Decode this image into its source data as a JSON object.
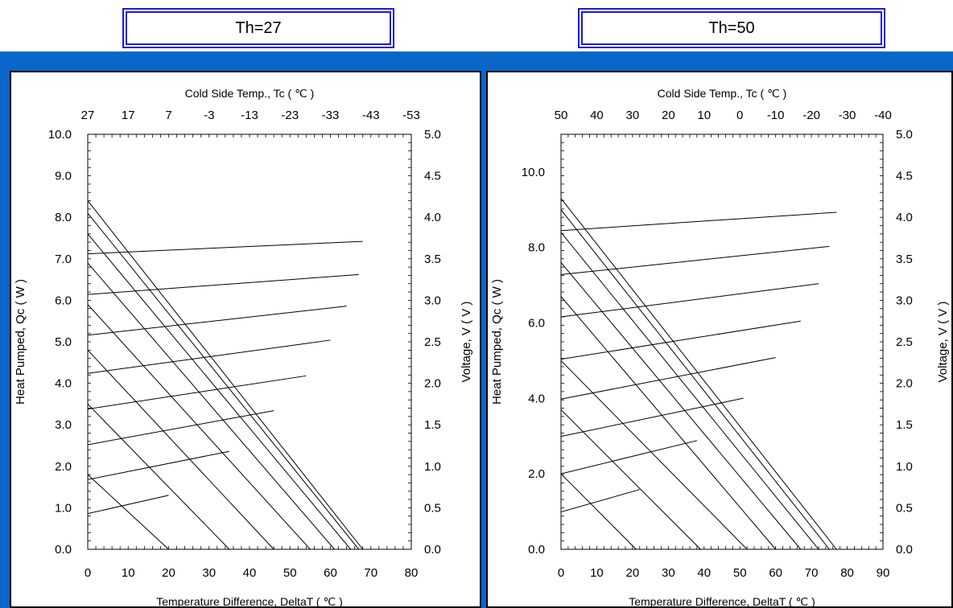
{
  "headers": {
    "left": "Th=27",
    "right": "Th=50"
  },
  "colors": {
    "banner": "#0a66c8",
    "box_border": "#1b1bd8"
  },
  "chart_data": [
    {
      "type": "line",
      "th_label": "Th=27",
      "top_axis_title": "Cold Side Temp., Tc ( ℃ )",
      "top_ticks": [
        "27",
        "17",
        "7",
        "-3",
        "-13",
        "-23",
        "-33",
        "-43",
        "-53"
      ],
      "xlabel": "Temperature Difference, DeltaT ( ℃ )",
      "ylabel": "Heat Pumped, Qc  ( W )",
      "ylabel2": "Voltage, V ( V )",
      "xlim": [
        0,
        80
      ],
      "ylim": [
        0,
        10
      ],
      "y2lim": [
        0,
        5
      ],
      "x_ticks": [
        "0",
        "10",
        "20",
        "30",
        "40",
        "50",
        "60",
        "70",
        "80"
      ],
      "y_ticks": [
        "0.0",
        "1.0",
        "2.0",
        "3.0",
        "4.0",
        "5.0",
        "6.0",
        "7.0",
        "8.0",
        "9.0",
        "10.0"
      ],
      "y2_ticks": [
        "0.0",
        "0.5",
        "1.0",
        "1.5",
        "2.0",
        "2.5",
        "3.0",
        "3.5",
        "4.0",
        "4.5",
        "5.0"
      ],
      "qc_lines": [
        [
          [
            0,
            1.8
          ],
          [
            20,
            0
          ]
        ],
        [
          [
            0,
            3.5
          ],
          [
            35,
            0
          ]
        ],
        [
          [
            0,
            4.8
          ],
          [
            46,
            0
          ]
        ],
        [
          [
            0,
            5.9
          ],
          [
            55,
            0
          ]
        ],
        [
          [
            0,
            6.9
          ],
          [
            61,
            0
          ]
        ],
        [
          [
            0,
            7.6
          ],
          [
            65,
            0
          ]
        ],
        [
          [
            0,
            8.1
          ],
          [
            67,
            0
          ]
        ],
        [
          [
            0,
            8.4
          ],
          [
            68,
            0
          ]
        ]
      ],
      "voltage_lines": [
        [
          [
            0,
            0.43
          ],
          [
            20,
            0.65
          ]
        ],
        [
          [
            0,
            0.84
          ],
          [
            35,
            1.18
          ]
        ],
        [
          [
            0,
            1.26
          ],
          [
            46,
            1.67
          ]
        ],
        [
          [
            0,
            1.69
          ],
          [
            54,
            2.09
          ]
        ],
        [
          [
            0,
            2.12
          ],
          [
            60,
            2.52
          ]
        ],
        [
          [
            0,
            2.58
          ],
          [
            64,
            2.93
          ]
        ],
        [
          [
            0,
            3.07
          ],
          [
            67,
            3.31
          ]
        ],
        [
          [
            0,
            3.56
          ],
          [
            68,
            3.71
          ]
        ]
      ]
    },
    {
      "type": "line",
      "th_label": "Th=50",
      "top_axis_title": "Cold Side Temp., Tc ( ℃ )",
      "top_ticks": [
        "50",
        "40",
        "30",
        "20",
        "10",
        "0",
        "-10",
        "-20",
        "-30",
        "-40"
      ],
      "xlabel": "Temperature Difference, DeltaT ( ℃ )",
      "ylabel": "Heat Pumped, Qc  ( W )",
      "ylabel2": "Voltage, V ( V )",
      "xlim": [
        0,
        90
      ],
      "ylim": [
        0,
        11
      ],
      "y2lim": [
        0,
        5
      ],
      "x_ticks": [
        "0",
        "10",
        "20",
        "30",
        "40",
        "50",
        "60",
        "70",
        "80",
        "90"
      ],
      "y_ticks": [
        "0.0",
        "2.0",
        "4.0",
        "6.0",
        "8.0",
        "10.0"
      ],
      "y_tick_values": [
        0,
        2,
        4,
        6,
        8,
        10
      ],
      "y2_ticks": [
        "0.0",
        "0.5",
        "1.0",
        "1.5",
        "2.0",
        "2.5",
        "3.0",
        "3.5",
        "4.0",
        "4.5",
        "5.0"
      ],
      "qc_lines": [
        [
          [
            0,
            2.0
          ],
          [
            21,
            0
          ]
        ],
        [
          [
            0,
            3.7
          ],
          [
            39,
            0
          ]
        ],
        [
          [
            0,
            5.0
          ],
          [
            52,
            0
          ]
        ],
        [
          [
            0,
            6.7
          ],
          [
            60,
            0
          ]
        ],
        [
          [
            0,
            7.6
          ],
          [
            67,
            0
          ]
        ],
        [
          [
            0,
            8.4
          ],
          [
            72,
            0
          ]
        ],
        [
          [
            0,
            9.0
          ],
          [
            75,
            0
          ]
        ],
        [
          [
            0,
            9.3
          ],
          [
            77,
            0
          ]
        ]
      ],
      "voltage_lines": [
        [
          [
            0,
            0.45
          ],
          [
            22,
            0.72
          ]
        ],
        [
          [
            0,
            0.91
          ],
          [
            38,
            1.31
          ]
        ],
        [
          [
            0,
            1.36
          ],
          [
            51,
            1.82
          ]
        ],
        [
          [
            0,
            1.81
          ],
          [
            60,
            2.31
          ]
        ],
        [
          [
            0,
            2.29
          ],
          [
            67,
            2.75
          ]
        ],
        [
          [
            0,
            2.8
          ],
          [
            72,
            3.2
          ]
        ],
        [
          [
            0,
            3.31
          ],
          [
            75,
            3.65
          ]
        ],
        [
          [
            0,
            3.84
          ],
          [
            77,
            4.06
          ]
        ]
      ]
    }
  ]
}
